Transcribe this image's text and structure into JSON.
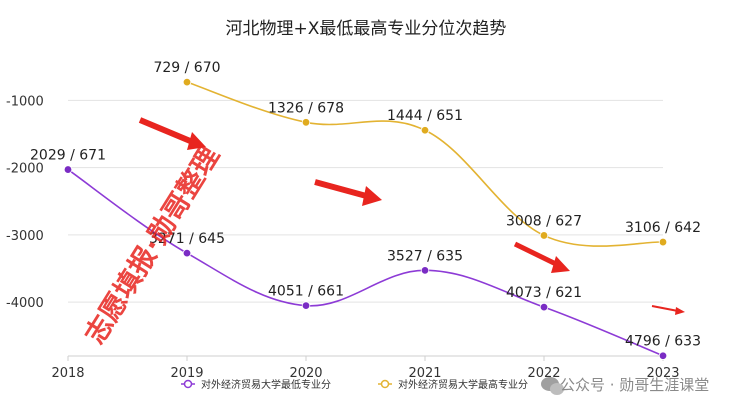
{
  "title": "河北物理+X最低最高专业分位次趋势",
  "chart_data": {
    "type": "line",
    "title": "河北物理+X最低最高专业分位次趋势",
    "xlabel": "",
    "ylabel": "",
    "categories": [
      "2018",
      "2019",
      "2020",
      "2021",
      "2022",
      "2023"
    ],
    "y_ticks": [
      "-1000",
      "-2000",
      "-3000",
      "-4000"
    ],
    "ylim": [
      -4800,
      -400
    ],
    "grid": "horizontal",
    "legend_position": "bottom",
    "series": [
      {
        "name": "对外经济贸易大学最低专业分",
        "color": "#8d3bd6",
        "marker_color": "#7a2cc4",
        "values": [
          -2029,
          -3271,
          -4051,
          -3527,
          -4073,
          -4796
        ],
        "labels": [
          "2029 / 671",
          "3271 / 645",
          "4051 / 661",
          "3527 / 635",
          "4073 / 621",
          "4796 / 633"
        ]
      },
      {
        "name": "对外经济贸易大学最高专业分",
        "color": "#e3b332",
        "marker_color": "#e0ab1f",
        "values": [
          null,
          -729,
          -1326,
          -1444,
          -3008,
          -3106
        ],
        "labels": [
          "",
          "729 / 670",
          "1326 / 678",
          "1444 / 651",
          "3008 / 627",
          "3106 / 642"
        ]
      }
    ]
  },
  "watermark": {
    "main": "志愿填报·勋哥整理",
    "corner": "公众号 · 勋哥生涯课堂"
  }
}
